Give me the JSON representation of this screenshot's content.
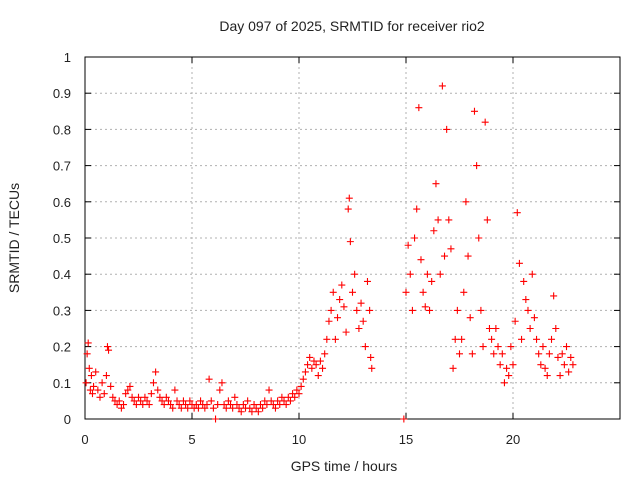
{
  "chart_data": {
    "type": "scatter",
    "title": "Day 097 of 2025, SRMTID for receiver rio2",
    "xlabel": "GPS time / hours",
    "ylabel": "SRMTID / TECUs",
    "xlim": [
      0,
      25
    ],
    "ylim": [
      0,
      1
    ],
    "xticks": [
      0,
      5,
      10,
      15,
      20
    ],
    "xtick_labels": [
      "0",
      "5",
      "10",
      "15",
      "20"
    ],
    "yticks": [
      0,
      0.1,
      0.2,
      0.3,
      0.4,
      0.5,
      0.6,
      0.7,
      0.8,
      0.9,
      1
    ],
    "ytick_labels": [
      "0",
      "0.1",
      "0.2",
      "0.3",
      "0.4",
      "0.5",
      "0.6",
      "0.7",
      "0.8",
      "0.9",
      "1"
    ],
    "grid": true,
    "marker": "+",
    "color": "#ff0000",
    "series": [
      {
        "name": "SRMTID",
        "points": [
          [
            0.05,
            0.1
          ],
          [
            0.1,
            0.18
          ],
          [
            0.15,
            0.21
          ],
          [
            0.2,
            0.14
          ],
          [
            0.25,
            0.08
          ],
          [
            0.3,
            0.12
          ],
          [
            0.35,
            0.07
          ],
          [
            0.4,
            0.09
          ],
          [
            0.5,
            0.13
          ],
          [
            0.6,
            0.08
          ],
          [
            0.7,
            0.06
          ],
          [
            0.8,
            0.1
          ],
          [
            0.9,
            0.07
          ],
          [
            1.0,
            0.12
          ],
          [
            1.05,
            0.2
          ],
          [
            1.1,
            0.19
          ],
          [
            1.2,
            0.09
          ],
          [
            1.3,
            0.06
          ],
          [
            1.4,
            0.05
          ],
          [
            1.5,
            0.04
          ],
          [
            1.6,
            0.05
          ],
          [
            1.7,
            0.03
          ],
          [
            1.8,
            0.04
          ],
          [
            1.9,
            0.07
          ],
          [
            2.0,
            0.08
          ],
          [
            2.1,
            0.09
          ],
          [
            2.2,
            0.06
          ],
          [
            2.3,
            0.05
          ],
          [
            2.4,
            0.04
          ],
          [
            2.5,
            0.06
          ],
          [
            2.6,
            0.05
          ],
          [
            2.7,
            0.04
          ],
          [
            2.8,
            0.06
          ],
          [
            2.9,
            0.05
          ],
          [
            3.0,
            0.04
          ],
          [
            3.1,
            0.07
          ],
          [
            3.2,
            0.1
          ],
          [
            3.3,
            0.13
          ],
          [
            3.4,
            0.08
          ],
          [
            3.5,
            0.06
          ],
          [
            3.6,
            0.05
          ],
          [
            3.7,
            0.04
          ],
          [
            3.8,
            0.06
          ],
          [
            3.9,
            0.05
          ],
          [
            4.0,
            0.04
          ],
          [
            4.1,
            0.03
          ],
          [
            4.2,
            0.08
          ],
          [
            4.3,
            0.05
          ],
          [
            4.4,
            0.04
          ],
          [
            4.5,
            0.03
          ],
          [
            4.6,
            0.05
          ],
          [
            4.7,
            0.04
          ],
          [
            4.8,
            0.03
          ],
          [
            4.9,
            0.05
          ],
          [
            5.0,
            0.04
          ],
          [
            5.1,
            0.03
          ],
          [
            5.2,
            0.04
          ],
          [
            5.3,
            0.03
          ],
          [
            5.4,
            0.05
          ],
          [
            5.5,
            0.04
          ],
          [
            5.6,
            0.03
          ],
          [
            5.7,
            0.04
          ],
          [
            5.8,
            0.11
          ],
          [
            5.9,
            0.05
          ],
          [
            6.0,
            0.03
          ],
          [
            6.1,
            0.0
          ],
          [
            6.2,
            0.04
          ],
          [
            6.3,
            0.08
          ],
          [
            6.4,
            0.1
          ],
          [
            6.5,
            0.04
          ],
          [
            6.6,
            0.03
          ],
          [
            6.7,
            0.05
          ],
          [
            6.8,
            0.04
          ],
          [
            6.9,
            0.03
          ],
          [
            7.0,
            0.06
          ],
          [
            7.1,
            0.04
          ],
          [
            7.2,
            0.03
          ],
          [
            7.3,
            0.02
          ],
          [
            7.4,
            0.04
          ],
          [
            7.5,
            0.03
          ],
          [
            7.6,
            0.05
          ],
          [
            7.7,
            0.03
          ],
          [
            7.8,
            0.02
          ],
          [
            7.9,
            0.04
          ],
          [
            8.0,
            0.03
          ],
          [
            8.1,
            0.02
          ],
          [
            8.2,
            0.04
          ],
          [
            8.3,
            0.03
          ],
          [
            8.4,
            0.05
          ],
          [
            8.5,
            0.04
          ],
          [
            8.6,
            0.08
          ],
          [
            8.7,
            0.05
          ],
          [
            8.8,
            0.04
          ],
          [
            8.9,
            0.03
          ],
          [
            9.0,
            0.05
          ],
          [
            9.1,
            0.04
          ],
          [
            9.2,
            0.06
          ],
          [
            9.3,
            0.05
          ],
          [
            9.4,
            0.04
          ],
          [
            9.5,
            0.06
          ],
          [
            9.6,
            0.05
          ],
          [
            9.7,
            0.07
          ],
          [
            9.8,
            0.06
          ],
          [
            9.9,
            0.08
          ],
          [
            10.0,
            0.07
          ],
          [
            10.1,
            0.09
          ],
          [
            10.2,
            0.11
          ],
          [
            10.3,
            0.13
          ],
          [
            10.4,
            0.15
          ],
          [
            10.5,
            0.17
          ],
          [
            10.6,
            0.14
          ],
          [
            10.7,
            0.16
          ],
          [
            10.8,
            0.15
          ],
          [
            10.9,
            0.12
          ],
          [
            11.0,
            0.16
          ],
          [
            11.1,
            0.14
          ],
          [
            11.2,
            0.18
          ],
          [
            11.3,
            0.22
          ],
          [
            11.4,
            0.27
          ],
          [
            11.5,
            0.3
          ],
          [
            11.6,
            0.35
          ],
          [
            11.7,
            0.22
          ],
          [
            11.8,
            0.28
          ],
          [
            11.9,
            0.33
          ],
          [
            12.0,
            0.37
          ],
          [
            12.1,
            0.31
          ],
          [
            12.2,
            0.24
          ],
          [
            12.3,
            0.58
          ],
          [
            12.35,
            0.61
          ],
          [
            12.4,
            0.49
          ],
          [
            12.5,
            0.35
          ],
          [
            12.6,
            0.4
          ],
          [
            12.7,
            0.3
          ],
          [
            12.8,
            0.25
          ],
          [
            12.9,
            0.32
          ],
          [
            13.0,
            0.27
          ],
          [
            13.1,
            0.2
          ],
          [
            13.2,
            0.38
          ],
          [
            13.3,
            0.3
          ],
          [
            13.35,
            0.17
          ],
          [
            13.4,
            0.14
          ],
          [
            14.9,
            0.0
          ],
          [
            15.0,
            0.35
          ],
          [
            15.1,
            0.48
          ],
          [
            15.2,
            0.4
          ],
          [
            15.3,
            0.3
          ],
          [
            15.4,
            0.5
          ],
          [
            15.5,
            0.58
          ],
          [
            15.6,
            0.86
          ],
          [
            15.7,
            0.44
          ],
          [
            15.8,
            0.35
          ],
          [
            15.9,
            0.31
          ],
          [
            16.0,
            0.4
          ],
          [
            16.1,
            0.3
          ],
          [
            16.2,
            0.38
          ],
          [
            16.3,
            0.52
          ],
          [
            16.4,
            0.65
          ],
          [
            16.5,
            0.55
          ],
          [
            16.6,
            0.4
          ],
          [
            16.7,
            0.92
          ],
          [
            16.8,
            0.45
          ],
          [
            16.9,
            0.8
          ],
          [
            17.0,
            0.55
          ],
          [
            17.1,
            0.47
          ],
          [
            17.2,
            0.14
          ],
          [
            17.3,
            0.22
          ],
          [
            17.4,
            0.3
          ],
          [
            17.5,
            0.18
          ],
          [
            17.6,
            0.22
          ],
          [
            17.7,
            0.35
          ],
          [
            17.8,
            0.6
          ],
          [
            17.9,
            0.45
          ],
          [
            18.0,
            0.28
          ],
          [
            18.1,
            0.18
          ],
          [
            18.2,
            0.85
          ],
          [
            18.3,
            0.7
          ],
          [
            18.4,
            0.5
          ],
          [
            18.5,
            0.3
          ],
          [
            18.6,
            0.2
          ],
          [
            18.7,
            0.82
          ],
          [
            18.8,
            0.55
          ],
          [
            18.9,
            0.25
          ],
          [
            19.0,
            0.22
          ],
          [
            19.1,
            0.18
          ],
          [
            19.2,
            0.25
          ],
          [
            19.3,
            0.2
          ],
          [
            19.4,
            0.15
          ],
          [
            19.5,
            0.18
          ],
          [
            19.6,
            0.1
          ],
          [
            19.7,
            0.14
          ],
          [
            19.8,
            0.12
          ],
          [
            19.9,
            0.2
          ],
          [
            20.0,
            0.15
          ],
          [
            20.1,
            0.27
          ],
          [
            20.2,
            0.57
          ],
          [
            20.3,
            0.43
          ],
          [
            20.4,
            0.22
          ],
          [
            20.5,
            0.38
          ],
          [
            20.6,
            0.33
          ],
          [
            20.7,
            0.3
          ],
          [
            20.8,
            0.25
          ],
          [
            20.9,
            0.4
          ],
          [
            21.0,
            0.28
          ],
          [
            21.1,
            0.22
          ],
          [
            21.2,
            0.18
          ],
          [
            21.3,
            0.15
          ],
          [
            21.4,
            0.2
          ],
          [
            21.5,
            0.14
          ],
          [
            21.6,
            0.12
          ],
          [
            21.7,
            0.18
          ],
          [
            21.8,
            0.22
          ],
          [
            21.9,
            0.34
          ],
          [
            22.0,
            0.25
          ],
          [
            22.1,
            0.17
          ],
          [
            22.2,
            0.12
          ],
          [
            22.3,
            0.18
          ],
          [
            22.4,
            0.15
          ],
          [
            22.5,
            0.2
          ],
          [
            22.6,
            0.13
          ],
          [
            22.7,
            0.17
          ],
          [
            22.8,
            0.15
          ]
        ]
      }
    ]
  }
}
